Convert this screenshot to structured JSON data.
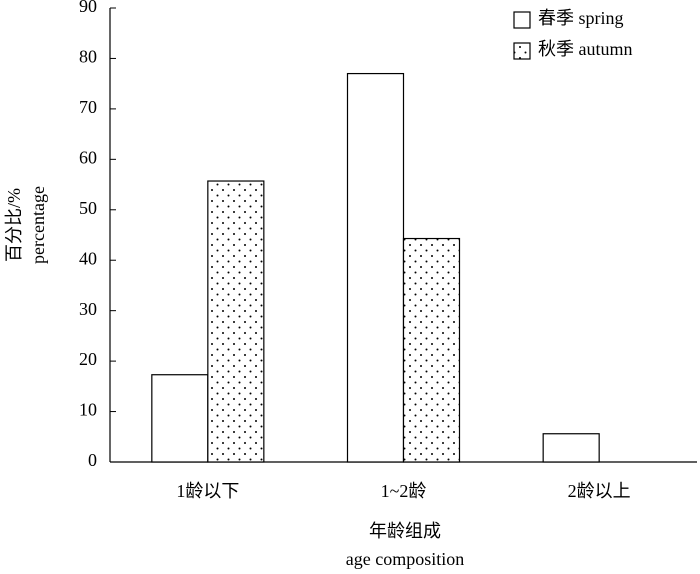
{
  "chart_data": {
    "type": "bar",
    "x_label_cn": "年龄组成",
    "x_label": "age composition",
    "y_label_cn": "百分比/%",
    "y_label": "percentage",
    "categories": [
      "1龄以下",
      "1~2龄",
      "2龄以上"
    ],
    "series": [
      {
        "name": "春季 spring",
        "color": "#ffffff",
        "values": [
          17.3,
          77,
          5.6
        ]
      },
      {
        "name": "秋季 autumn",
        "color": "#ffffff",
        "pattern": "dots",
        "values": [
          55.7,
          44.3,
          0
        ]
      }
    ],
    "ylim": [
      0,
      90
    ],
    "yticks": [
      0,
      10,
      20,
      30,
      40,
      50,
      60,
      70,
      80,
      90
    ],
    "legend": "upper right",
    "grid": false
  }
}
